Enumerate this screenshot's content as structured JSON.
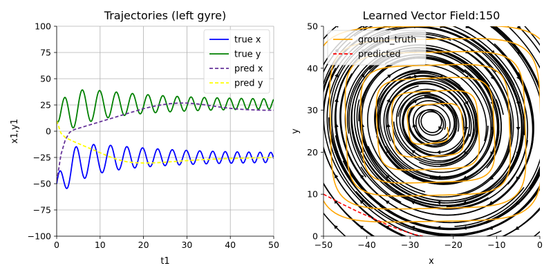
{
  "chart_data": [
    {
      "type": "line",
      "title": "Trajectories (left gyre)",
      "xlabel": "t1",
      "ylabel": "x1,y1",
      "xlim": [
        0,
        50
      ],
      "ylim": [
        -100,
        100
      ],
      "xticks": [
        "0",
        "10",
        "20",
        "30",
        "40",
        "50"
      ],
      "yticks": [
        "100",
        "75",
        "50",
        "25",
        "0",
        "−25",
        "−50",
        "−75",
        "−100"
      ],
      "grid": true,
      "legend_position": "top-right",
      "series": [
        {
          "name": "true x",
          "color": "#0000ff",
          "style": "solid",
          "model": {
            "baseline_start": -50,
            "baseline_end": -25,
            "baseline_tau": 3.5,
            "amp_start": 22,
            "amp_end": 4,
            "amp_tau": 16,
            "period_start": 4.3,
            "period_end": 2.4,
            "phase": 1.2
          }
        },
        {
          "name": "true y",
          "color": "#008000",
          "style": "solid",
          "model": {
            "baseline_start": 10,
            "baseline_end": 26,
            "baseline_tau": 3.5,
            "amp_start": 22,
            "amp_end": 4,
            "amp_tau": 16,
            "period_start": 4.3,
            "period_end": 2.4,
            "phase": -1.0
          }
        },
        {
          "name": "pred x",
          "color": "#663399",
          "style": "dashed",
          "points": [
            [
              0,
              -48
            ],
            [
              1,
              -22
            ],
            [
              2,
              -8
            ],
            [
              3,
              -1
            ],
            [
              4,
              1.5
            ],
            [
              6,
              4
            ],
            [
              8,
              6.5
            ],
            [
              10,
              9
            ],
            [
              12,
              11.5
            ],
            [
              14,
              14
            ],
            [
              16,
              16.5
            ],
            [
              18,
              19
            ],
            [
              20,
              21.5
            ],
            [
              22,
              23.5
            ],
            [
              24,
              25
            ],
            [
              26,
              26.2
            ],
            [
              28,
              26.8
            ],
            [
              30,
              26.8
            ],
            [
              32,
              26.2
            ],
            [
              34,
              25.2
            ],
            [
              36,
              24
            ],
            [
              38,
              22.8
            ],
            [
              40,
              21.8
            ],
            [
              42,
              21
            ],
            [
              44,
              20.5
            ],
            [
              46,
              20.2
            ],
            [
              48,
              20
            ],
            [
              50,
              20
            ]
          ]
        },
        {
          "name": "pred y",
          "color": "#ffff00",
          "style": "dashed",
          "points": [
            [
              0,
              10
            ],
            [
              1,
              -2
            ],
            [
              2,
              -6
            ],
            [
              4,
              -10
            ],
            [
              6,
              -13.5
            ],
            [
              8,
              -17
            ],
            [
              10,
              -20.5
            ],
            [
              12,
              -24
            ],
            [
              14,
              -27
            ],
            [
              16,
              -29
            ],
            [
              18,
              -30
            ],
            [
              20,
              -30.3
            ],
            [
              22,
              -30.2
            ],
            [
              24,
              -29.8
            ],
            [
              26,
              -29.2
            ],
            [
              28,
              -28.6
            ],
            [
              30,
              -28
            ],
            [
              32,
              -27.5
            ],
            [
              34,
              -27
            ],
            [
              36,
              -26.6
            ],
            [
              38,
              -26.3
            ],
            [
              40,
              -26
            ],
            [
              42,
              -25.8
            ],
            [
              44,
              -25.6
            ],
            [
              46,
              -25.4
            ],
            [
              48,
              -25.2
            ],
            [
              50,
              -25
            ]
          ]
        }
      ]
    },
    {
      "type": "streamplot",
      "title": "Learned Vector Field:150",
      "xlabel": "x",
      "ylabel": "y",
      "xlim": [
        -50,
        0
      ],
      "ylim": [
        0,
        50
      ],
      "xticks": [
        "−50",
        "−40",
        "−30",
        "−20",
        "−10",
        "0"
      ],
      "yticks": [
        "50",
        "40",
        "30",
        "20",
        "10",
        "0"
      ],
      "grid": false,
      "legend_position": "top-left",
      "field_center": [
        -25,
        27
      ],
      "series": [
        {
          "name": "ground_truth",
          "color": "#ffa500",
          "style": "solid",
          "spiral": {
            "cx": -25,
            "cy": 26,
            "r_start": 5,
            "r_end": 40,
            "turns": 7,
            "squareness": 0.8
          }
        },
        {
          "name": "predicted",
          "color": "#ff0000",
          "style": "dashed",
          "points": [
            [
              -50,
              10
            ],
            [
              -46,
              7.8
            ],
            [
              -42,
              5.8
            ],
            [
              -38,
              4
            ],
            [
              -35,
              2.6
            ],
            [
              -32,
              1.4
            ],
            [
              -29,
              0.4
            ],
            [
              -27,
              0
            ]
          ]
        }
      ]
    }
  ]
}
